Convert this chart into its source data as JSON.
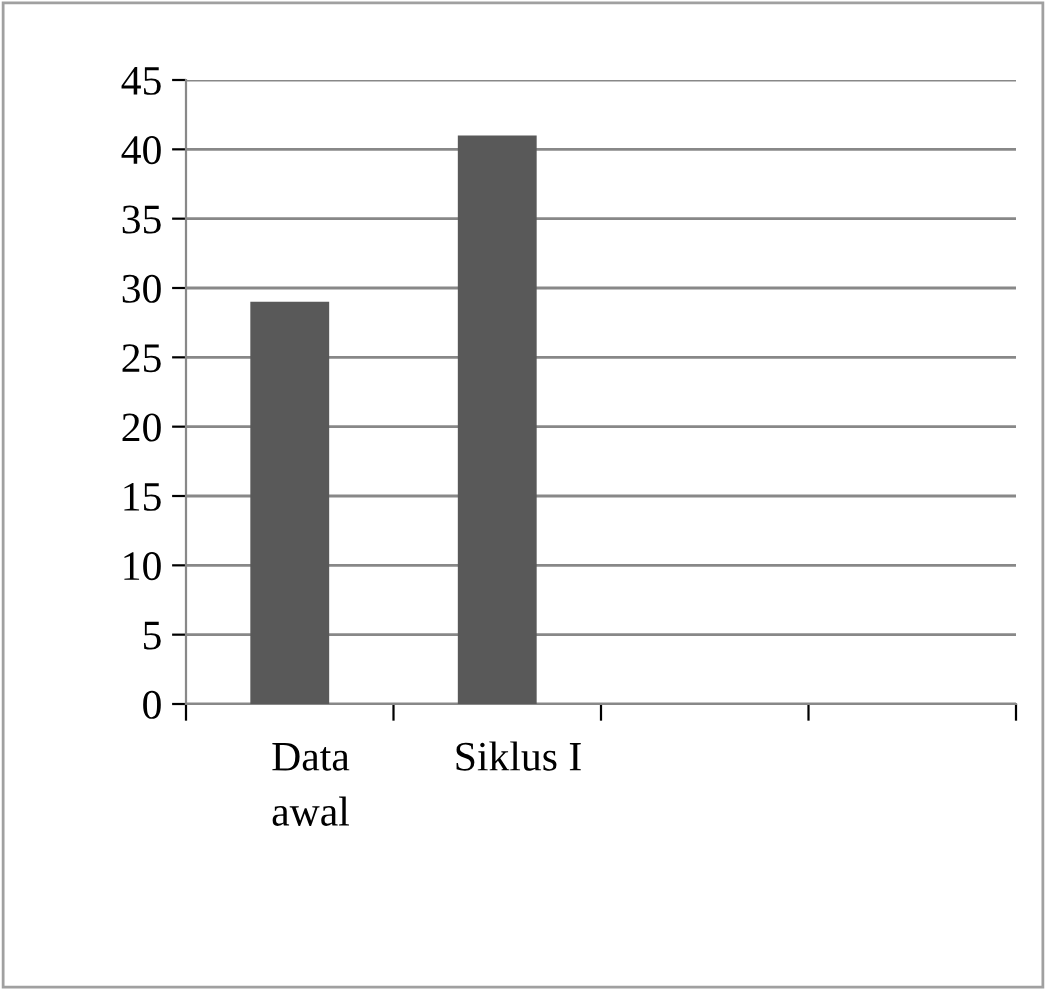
{
  "chart_data": {
    "type": "bar",
    "categories": [
      "Data awal",
      "Siklus I",
      null,
      null
    ],
    "values": [
      29,
      41,
      null,
      null
    ],
    "color": "#595959",
    "ylim": [
      0,
      45
    ],
    "yticks": [
      0,
      5,
      10,
      15,
      20,
      25,
      30,
      35,
      40,
      45
    ],
    "grid": "y",
    "legend": false
  }
}
